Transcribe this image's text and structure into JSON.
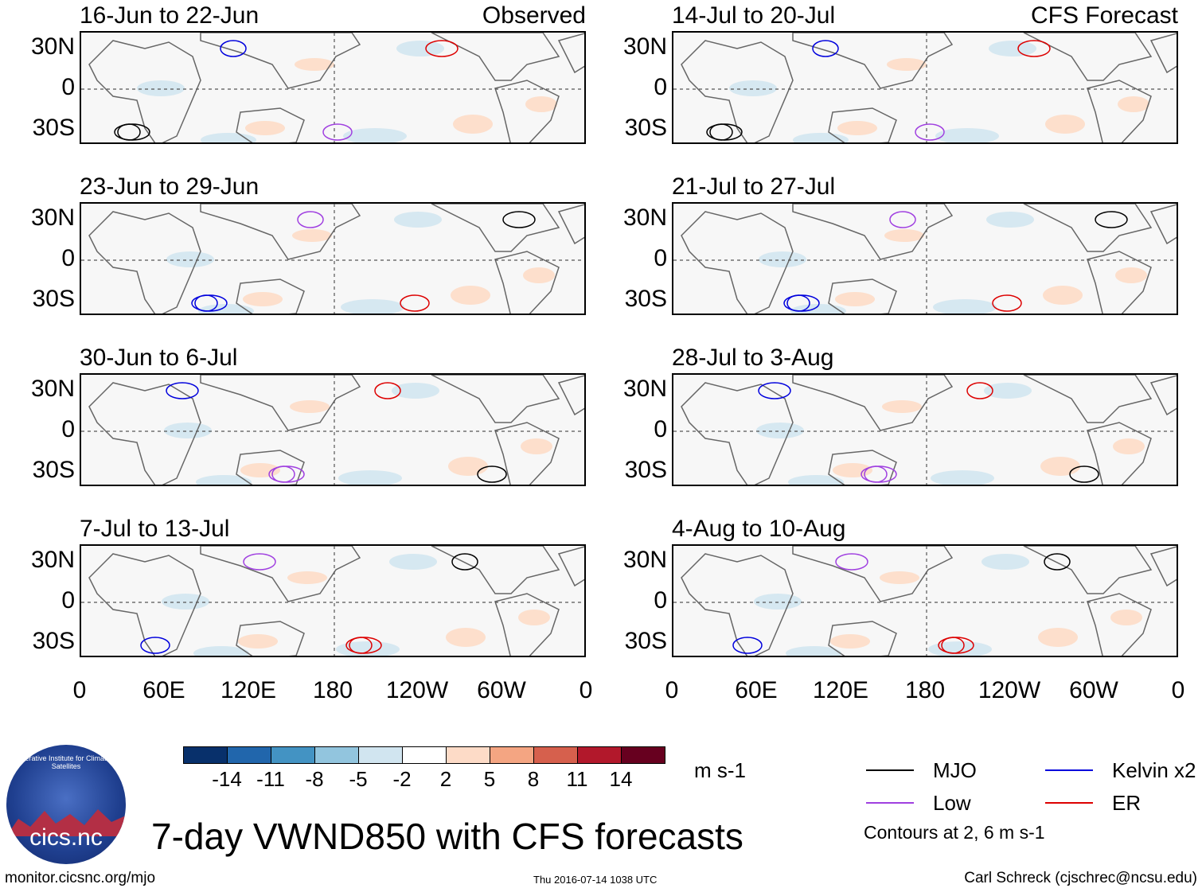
{
  "title": "7-day VWND850 with CFS forecasts",
  "panels_left": [
    {
      "title": "16-Jun to 22-Jun",
      "tag": "Observed"
    },
    {
      "title": "23-Jun to 29-Jun",
      "tag": ""
    },
    {
      "title": "30-Jun to 6-Jul",
      "tag": ""
    },
    {
      "title": "7-Jul to 13-Jul",
      "tag": ""
    }
  ],
  "panels_right": [
    {
      "title": "14-Jul to 20-Jul",
      "tag": "CFS Forecast"
    },
    {
      "title": "21-Jul to 27-Jul",
      "tag": ""
    },
    {
      "title": "28-Jul to 3-Aug",
      "tag": ""
    },
    {
      "title": "4-Aug to 10-Aug",
      "tag": ""
    }
  ],
  "y_labels": [
    "30N",
    "0",
    "30S"
  ],
  "x_labels": [
    "0",
    "60E",
    "120E",
    "180",
    "120W",
    "60W",
    "0"
  ],
  "colorbar": {
    "colors": [
      "#08306b",
      "#2166ac",
      "#4393c3",
      "#92c5de",
      "#d1e5f0",
      "#ffffff",
      "#fddbc7",
      "#f4a582",
      "#d6604d",
      "#b2182b",
      "#67001f"
    ],
    "labels": [
      "-14",
      "-11",
      "-8",
      "-5",
      "-2",
      "2",
      "5",
      "8",
      "11",
      "14"
    ],
    "units": "m s-1"
  },
  "legend": {
    "items": [
      {
        "label": "MJO",
        "color": "#000000"
      },
      {
        "label": "Kelvin x2",
        "color": "#0000dd"
      },
      {
        "label": "Low",
        "color": "#a040e0"
      },
      {
        "label": "ER",
        "color": "#dd0000"
      }
    ],
    "note": "Contours at 2, 6 m s-1"
  },
  "logo": {
    "text": "cics.nc",
    "ring": "Cooperative Institute for Climate and Satellites"
  },
  "footer": {
    "url": "monitor.cicsnc.org/mjo",
    "timestamp": "Thu 2016-07-14 1038 UTC",
    "author": "Carl Schreck (cjschrec@ncsu.edu)"
  }
}
